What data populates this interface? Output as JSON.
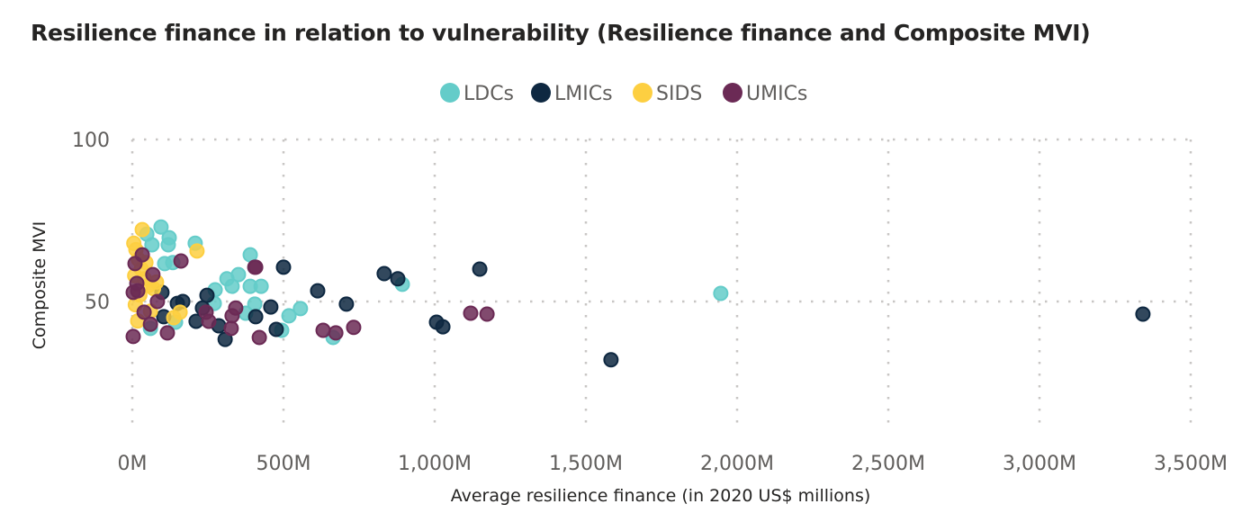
{
  "chart_data": {
    "type": "scatter",
    "title": "Resilience finance in relation to vulnerability (Resilience finance and Composite MVI)",
    "xlabel": "Average resilience finance (in 2020 US$ millions)",
    "ylabel": "Composite MVI",
    "xlim": [
      0,
      3500
    ],
    "ylim": [
      10,
      100
    ],
    "x_ticks": [
      0,
      500,
      1000,
      1500,
      2000,
      2500,
      3000,
      3500
    ],
    "x_tick_labels": [
      "0M",
      "500M",
      "1,000M",
      "1,500M",
      "2,000M",
      "2,500M",
      "3,000M",
      "3,500M"
    ],
    "y_ticks": [
      50,
      100
    ],
    "y_tick_labels": [
      "50",
      "100"
    ],
    "grid": true,
    "legend_position": "top-center",
    "series": [
      {
        "name": "LDCs",
        "color": "#64CCC9",
        "points": [
          [
            95,
            73
          ],
          [
            122,
            69.7
          ],
          [
            119,
            67.5
          ],
          [
            65,
            67.5
          ],
          [
            208,
            68
          ],
          [
            48,
            70.8
          ],
          [
            107,
            61.7
          ],
          [
            134,
            62
          ],
          [
            390,
            64.4
          ],
          [
            893,
            55.3
          ],
          [
            556,
            47.8
          ],
          [
            518,
            45.6
          ],
          [
            494,
            41.1
          ],
          [
            664,
            38.9
          ],
          [
            405,
            49.2
          ],
          [
            375,
            46.4
          ],
          [
            274,
            53.6
          ],
          [
            271,
            49.4
          ],
          [
            313,
            57
          ],
          [
            351,
            58.3
          ],
          [
            390,
            54.7
          ],
          [
            426,
            54.7
          ],
          [
            330,
            54.7
          ],
          [
            143,
            43.6
          ],
          [
            60,
            41.7
          ],
          [
            1946,
            52.5
          ]
        ]
      },
      {
        "name": "LMICs",
        "color": "#0E2841",
        "points": [
          [
            500,
            60.6
          ],
          [
            613,
            53.3
          ],
          [
            708,
            49.2
          ],
          [
            833,
            58.6
          ],
          [
            878,
            57
          ],
          [
            1149,
            60
          ],
          [
            1006,
            43.6
          ],
          [
            1027,
            42.2
          ],
          [
            458,
            48.3
          ],
          [
            408,
            45.3
          ],
          [
            476,
            41.4
          ],
          [
            307,
            38.3
          ],
          [
            286,
            42.5
          ],
          [
            167,
            50
          ],
          [
            149,
            49.4
          ],
          [
            98,
            52.8
          ],
          [
            104,
            45.3
          ],
          [
            211,
            43.9
          ],
          [
            247,
            51.9
          ],
          [
            232,
            48
          ],
          [
            1583,
            32
          ],
          [
            3342,
            46.1
          ]
        ]
      },
      {
        "name": "SIDS",
        "color": "#FDCF41",
        "points": [
          [
            33,
            72.2
          ],
          [
            214,
            65.6
          ],
          [
            158,
            46.7
          ],
          [
            137,
            45
          ],
          [
            5,
            68
          ],
          [
            12,
            66
          ],
          [
            20,
            63
          ],
          [
            30,
            60
          ],
          [
            8,
            58
          ],
          [
            40,
            57
          ],
          [
            55,
            55
          ],
          [
            70,
            54
          ],
          [
            25,
            52
          ],
          [
            10,
            49
          ],
          [
            18,
            44
          ],
          [
            60,
            47
          ],
          [
            45,
            62
          ],
          [
            80,
            56
          ]
        ]
      },
      {
        "name": "UMICs",
        "color": "#6B2A55",
        "points": [
          [
            33,
            64.4
          ],
          [
            9,
            61.7
          ],
          [
            161,
            62.5
          ],
          [
            68,
            58.3
          ],
          [
            15,
            55.6
          ],
          [
            18,
            53.3
          ],
          [
            83,
            50
          ],
          [
            39,
            46.7
          ],
          [
            3,
            52.8
          ],
          [
            3,
            39.2
          ],
          [
            60,
            43
          ],
          [
            116,
            40.3
          ],
          [
            244,
            46.7
          ],
          [
            253,
            43.9
          ],
          [
            408,
            60.6
          ],
          [
            405,
            60.6
          ],
          [
            342,
            48
          ],
          [
            330,
            45.6
          ],
          [
            327,
            41.7
          ],
          [
            420,
            38.9
          ],
          [
            631,
            41.1
          ],
          [
            673,
            40.3
          ],
          [
            732,
            42
          ],
          [
            1119,
            46.4
          ],
          [
            1173,
            46.1
          ]
        ]
      }
    ]
  }
}
